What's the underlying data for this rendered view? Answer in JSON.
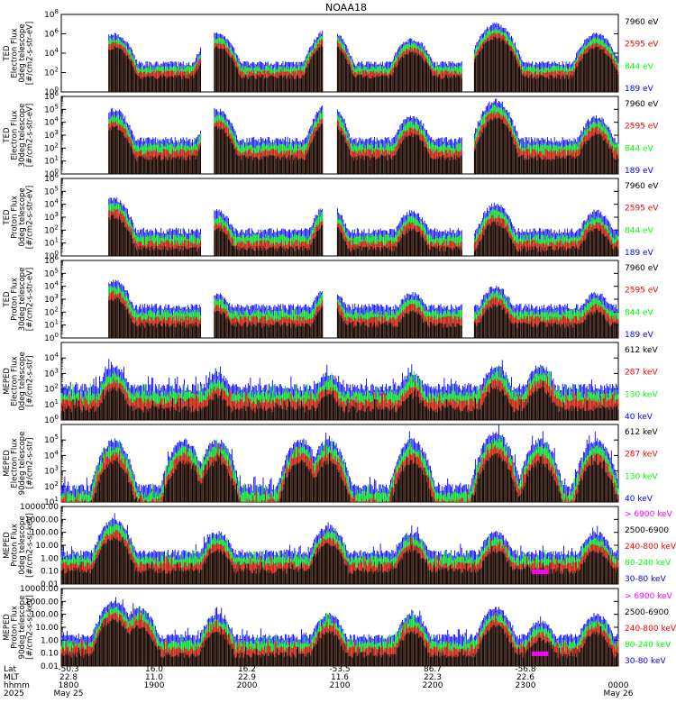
{
  "title": "NOAA18",
  "colors": {
    "blue": "#0000ff",
    "red": "#ff0000",
    "green": "#00ff00",
    "black": "#000000",
    "magenta": "#ff00ff",
    "axis": "#000000"
  },
  "chart_data": [
    {
      "type": "line",
      "panel": "TED Electron Flux 0deg telescope",
      "ylabel": [
        "TED",
        "Electron Flux",
        "0deg telescope",
        "[#/cm2-s-str-eV]"
      ],
      "scale": "log",
      "ylim": [
        1,
        100000000
      ],
      "ytick_labels": [
        "10^8",
        "10^6",
        "10^4",
        "10^2",
        "10^0"
      ],
      "ytick_values": [
        100000000,
        1000000,
        10000,
        100,
        1
      ],
      "legend": [
        {
          "label": "7960 eV",
          "color": "#000000"
        },
        {
          "label": "2595 eV",
          "color": "#ff0000"
        },
        {
          "label": "844 eV",
          "color": "#00ff00"
        },
        {
          "label": "189 eV",
          "color": "#0000ff"
        }
      ],
      "peaks": [
        [
          9.5,
          1000000
        ],
        [
          28.0,
          1000000
        ],
        [
          48.0,
          3000000
        ],
        [
          63.0,
          300000
        ],
        [
          78.0,
          10000000
        ],
        [
          96.0,
          1000000
        ]
      ],
      "base": 1000,
      "bandOn": true
    },
    {
      "type": "line",
      "panel": "TED Electron Flux 30deg telescope",
      "ylabel": [
        "TED",
        "Electron Flux",
        "30deg telescope",
        "[#/cm2-s-str-eV]"
      ],
      "scale": "log",
      "ylim": [
        1,
        1000000
      ],
      "ytick_labels": [
        "10^6",
        "10^5",
        "10^4",
        "10^3",
        "10^2",
        "10^1",
        "10^0"
      ],
      "ytick_values": [
        1000000,
        100000,
        10000,
        1000,
        100,
        10,
        1
      ],
      "legend": [
        {
          "label": "7960 eV",
          "color": "#000000"
        },
        {
          "label": "2595 eV",
          "color": "#ff0000"
        },
        {
          "label": "844 eV",
          "color": "#00ff00"
        },
        {
          "label": "189 eV",
          "color": "#0000ff"
        }
      ],
      "peaks": [
        [
          9.5,
          100000
        ],
        [
          28.0,
          100000
        ],
        [
          48.0,
          300000
        ],
        [
          63.0,
          30000
        ],
        [
          78.0,
          500000
        ],
        [
          96.0,
          30000
        ]
      ],
      "base": 500,
      "bandOn": true
    },
    {
      "type": "line",
      "panel": "TED Proton Flux 0deg telescope",
      "ylabel": [
        "TED",
        "Proton Flux",
        "0deg telescope",
        "[#/cm2-s-str-eV]"
      ],
      "scale": "log",
      "ylim": [
        1,
        1000000
      ],
      "ytick_labels": [
        "10^6",
        "10^5",
        "10^4",
        "10^3",
        "10^2",
        "10^1",
        "10^0"
      ],
      "ytick_values": [
        1000000,
        100000,
        10000,
        1000,
        100,
        10,
        1
      ],
      "legend": [
        {
          "label": "7960 eV",
          "color": "#000000"
        },
        {
          "label": "2595 eV",
          "color": "#ff0000"
        },
        {
          "label": "844 eV",
          "color": "#00ff00"
        },
        {
          "label": "189 eV",
          "color": "#0000ff"
        }
      ],
      "peaks": [
        [
          9.5,
          30000
        ],
        [
          28.0,
          3000
        ],
        [
          48.0,
          10000
        ],
        [
          63.0,
          3000
        ],
        [
          78.0,
          10000
        ],
        [
          96.0,
          3000
        ]
      ],
      "base": 100,
      "bandOn": false
    },
    {
      "type": "line",
      "panel": "TED Proton Flux 30deg telescope",
      "ylabel": [
        "TED",
        "Proton Flux",
        "30deg telescope",
        "[#/cm2-s-str-eV]"
      ],
      "scale": "log",
      "ylim": [
        1,
        1000000
      ],
      "ytick_labels": [
        "10^6",
        "10^5",
        "10^4",
        "10^3",
        "10^2",
        "10^1",
        "10^0"
      ],
      "ytick_values": [
        1000000,
        100000,
        10000,
        1000,
        100,
        10,
        1
      ],
      "legend": [
        {
          "label": "7960 eV",
          "color": "#000000"
        },
        {
          "label": "2595 eV",
          "color": "#ff0000"
        },
        {
          "label": "844 eV",
          "color": "#00ff00"
        },
        {
          "label": "189 eV",
          "color": "#0000ff"
        }
      ],
      "peaks": [
        [
          9.5,
          30000
        ],
        [
          28.0,
          3000
        ],
        [
          48.0,
          10000
        ],
        [
          63.0,
          3000
        ],
        [
          78.0,
          10000
        ],
        [
          96.0,
          3000
        ]
      ],
      "base": 300,
      "bandOn": false
    },
    {
      "type": "line",
      "panel": "MEPED Electron Flux 0deg telescope",
      "ylabel": [
        "MEPED",
        "Electron Flux",
        "0deg telescope",
        "[#/cm2-s-str]"
      ],
      "scale": "log",
      "ylim": [
        1,
        100000
      ],
      "ytick_labels": [
        "10^4",
        "10^3",
        "10^2",
        "10^1",
        "10^0"
      ],
      "ytick_values": [
        10000,
        1000,
        100,
        10,
        1
      ],
      "legend": [
        {
          "label": "612 keV",
          "color": "#000000"
        },
        {
          "label": "287 keV",
          "color": "#ff0000"
        },
        {
          "label": "130 keV",
          "color": "#00ff00"
        },
        {
          "label": "40 keV",
          "color": "#0000ff"
        }
      ],
      "peaks": [
        [
          9.5,
          3000
        ],
        [
          28.0,
          1000
        ],
        [
          48.0,
          1000
        ],
        [
          63.0,
          1000
        ],
        [
          78.0,
          3000
        ],
        [
          86.0,
          3000
        ]
      ],
      "base": 150,
      "bandOn": false
    },
    {
      "type": "line",
      "panel": "MEPED Electron Flux 90deg telescope",
      "ylabel": [
        "MEPED",
        "Electron Flux",
        "90deg telescope",
        "[#/cm2-s-str]"
      ],
      "scale": "log",
      "ylim": [
        10,
        1000000
      ],
      "ytick_labels": [
        "10^5",
        "10^4",
        "10^3",
        "10^2",
        "10^1"
      ],
      "ytick_values": [
        100000,
        10000,
        1000,
        100,
        10
      ],
      "legend": [
        {
          "label": "612 keV",
          "color": "#000000"
        },
        {
          "label": "287 keV",
          "color": "#ff0000"
        },
        {
          "label": "130 keV",
          "color": "#00ff00"
        },
        {
          "label": "40 keV",
          "color": "#0000ff"
        }
      ],
      "peaks": [
        [
          9.5,
          100000
        ],
        [
          22.0,
          100000
        ],
        [
          28.0,
          100000
        ],
        [
          43.0,
          100000
        ],
        [
          48.0,
          100000
        ],
        [
          63.0,
          100000
        ],
        [
          78.0,
          300000
        ],
        [
          86.0,
          100000
        ],
        [
          96.0,
          100000
        ]
      ],
      "base": 100,
      "bandOn": false
    },
    {
      "type": "line",
      "panel": "MEPED Proton Flux 0deg telescope",
      "ylabel": [
        "MEPED",
        "Proton Flux",
        "0deg telescope",
        "[#/cm2-s-sr-keV]"
      ],
      "scale": "log",
      "ylim": [
        0.01,
        10000
      ],
      "ytick_labels": [
        "10000.00",
        "1000.00",
        "100.00",
        "10.00",
        "1.00",
        "0.10",
        "0.01"
      ],
      "ytick_values": [
        10000,
        1000,
        100,
        10,
        1,
        0.1,
        0.01
      ],
      "legend": [
        {
          "label": "> 6900 keV",
          "color": "#ff00ff"
        },
        {
          "label": "2500-6900",
          "color": "#000000"
        },
        {
          "label": "240-800 keV",
          "color": "#ff0000"
        },
        {
          "label": "80-240 keV",
          "color": "#00ff00"
        },
        {
          "label": "30-80 keV",
          "color": "#0000ff"
        }
      ],
      "peaks": [
        [
          9.5,
          1000
        ],
        [
          28.0,
          100
        ],
        [
          48.0,
          300
        ],
        [
          63.0,
          100
        ],
        [
          78.0,
          100
        ],
        [
          96.0,
          100
        ]
      ],
      "base": 3,
      "bandOn": false
    },
    {
      "type": "line",
      "panel": "MEPED Proton Flux 90deg telescope",
      "ylabel": [
        "MEPED",
        "Proton Flux",
        "90deg telescope",
        "[#/cm2-s-sr-keV]"
      ],
      "scale": "log",
      "ylim": [
        0.01,
        10000
      ],
      "ytick_labels": [
        "10000.00",
        "1000.00",
        "100.00",
        "10.00",
        "1.00",
        "0.10",
        "0.01"
      ],
      "ytick_values": [
        10000,
        1000,
        100,
        10,
        1,
        0.1,
        0.01
      ],
      "legend": [
        {
          "label": "> 6900 keV",
          "color": "#ff00ff"
        },
        {
          "label": "2500-6900",
          "color": "#000000"
        },
        {
          "label": "240-800 keV",
          "color": "#ff0000"
        },
        {
          "label": "80-240 keV",
          "color": "#00ff00"
        },
        {
          "label": "30-80 keV",
          "color": "#0000ff"
        }
      ],
      "peaks": [
        [
          9.5,
          1000
        ],
        [
          14.0,
          300
        ],
        [
          28.0,
          100
        ],
        [
          48.0,
          100
        ],
        [
          63.0,
          100
        ],
        [
          78.0,
          300
        ],
        [
          86.0,
          30
        ],
        [
          96.0,
          100
        ]
      ],
      "base": 2,
      "bandOn": false
    }
  ],
  "x_axis": {
    "row_labels": [
      "Lat",
      "MLT",
      "hhmm",
      "2025"
    ],
    "ticks": [
      {
        "lat": "-50.3",
        "mlt": "22.8",
        "hhmm": "1800",
        "date": "May 25"
      },
      {
        "lat": "16.0",
        "mlt": "11.0",
        "hhmm": "1900",
        "date": ""
      },
      {
        "lat": "16.2",
        "mlt": "22.9",
        "hhmm": "2000",
        "date": ""
      },
      {
        "lat": "-53.5",
        "mlt": "11.6",
        "hhmm": "2100",
        "date": ""
      },
      {
        "lat": "86.7",
        "mlt": "22.3",
        "hhmm": "2200",
        "date": ""
      },
      {
        "lat": "-56.8",
        "mlt": "22.6",
        "hhmm": "2300",
        "date": ""
      },
      {
        "lat": "",
        "mlt": "",
        "hhmm": "0000",
        "date": "May 26"
      }
    ]
  }
}
